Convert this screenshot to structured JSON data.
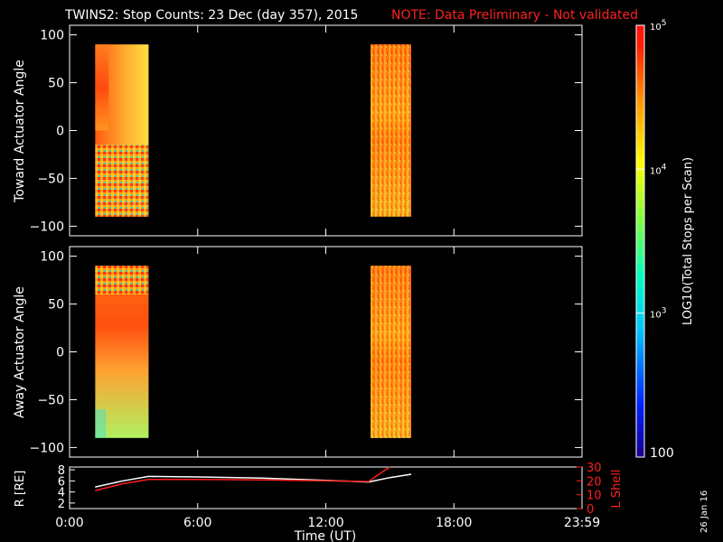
{
  "header": {
    "title": "TWINS2: Stop Counts: 23 Dec (day 357), 2015",
    "note": "NOTE: Data Preliminary - Not validated"
  },
  "colors": {
    "note": "#ff2020",
    "r_line": "#ffffff",
    "lshell_line": "#ff2020",
    "background": "#000000"
  },
  "footer": {
    "date_stamp": "26 Jan 16"
  },
  "chart_data": [
    {
      "type": "heatmap",
      "panel": "toward",
      "ylabel": "Toward Actuator Angle",
      "ylim": [
        -110,
        110
      ],
      "yticks": [
        100,
        50,
        0,
        -50,
        -100
      ],
      "xlim": [
        0,
        24
      ],
      "blocks": [
        {
          "x0": 1.2,
          "x1": 3.7
        },
        {
          "x0": 14.1,
          "x1": 16.0
        }
      ]
    },
    {
      "type": "heatmap",
      "panel": "away",
      "ylabel": "Away Actuator Angle",
      "ylim": [
        -110,
        110
      ],
      "yticks": [
        100,
        50,
        0,
        -50,
        -100
      ],
      "xlim": [
        0,
        24
      ],
      "blocks": [
        {
          "x0": 1.2,
          "x1": 3.7
        },
        {
          "x0": 14.1,
          "x1": 16.0
        }
      ]
    },
    {
      "type": "line",
      "panel": "orbit",
      "ylabel": "R [RE]",
      "y2label": "L Shell",
      "ylim": [
        1,
        8.5
      ],
      "yticks": [
        2,
        4,
        6,
        8
      ],
      "y2lim": [
        0,
        30
      ],
      "y2ticks": [
        0,
        10,
        20,
        30
      ],
      "xlim": [
        0,
        24
      ],
      "xticks": [
        "0:00",
        "6:00",
        "12:00",
        "18:00",
        "23:59"
      ],
      "xlabel": "Time (UT)",
      "series": [
        {
          "name": "R",
          "axis": "left",
          "x": [
            1.2,
            2.5,
            3.7,
            6,
            9,
            12,
            14.0,
            15.0,
            16.0
          ],
          "y": [
            4.9,
            6.0,
            6.8,
            6.7,
            6.5,
            6.1,
            5.8,
            6.6,
            7.2
          ]
        },
        {
          "name": "L Shell",
          "axis": "right",
          "x": [
            1.2,
            2.5,
            3.7,
            6,
            9,
            12,
            14.0,
            14.7,
            15.0
          ],
          "y": [
            13,
            18,
            21,
            21,
            20.7,
            20,
            19.5,
            27,
            30
          ]
        }
      ]
    }
  ],
  "colorbar": {
    "ylabel": "LOG10(Total Stops per Scan)",
    "min_label": "100",
    "labels": [
      {
        "base": "10",
        "exp": "3",
        "value": 1000
      },
      {
        "base": "10",
        "exp": "4",
        "value": 10000
      },
      {
        "base": "10",
        "exp": "5",
        "value": 100000
      }
    ]
  }
}
